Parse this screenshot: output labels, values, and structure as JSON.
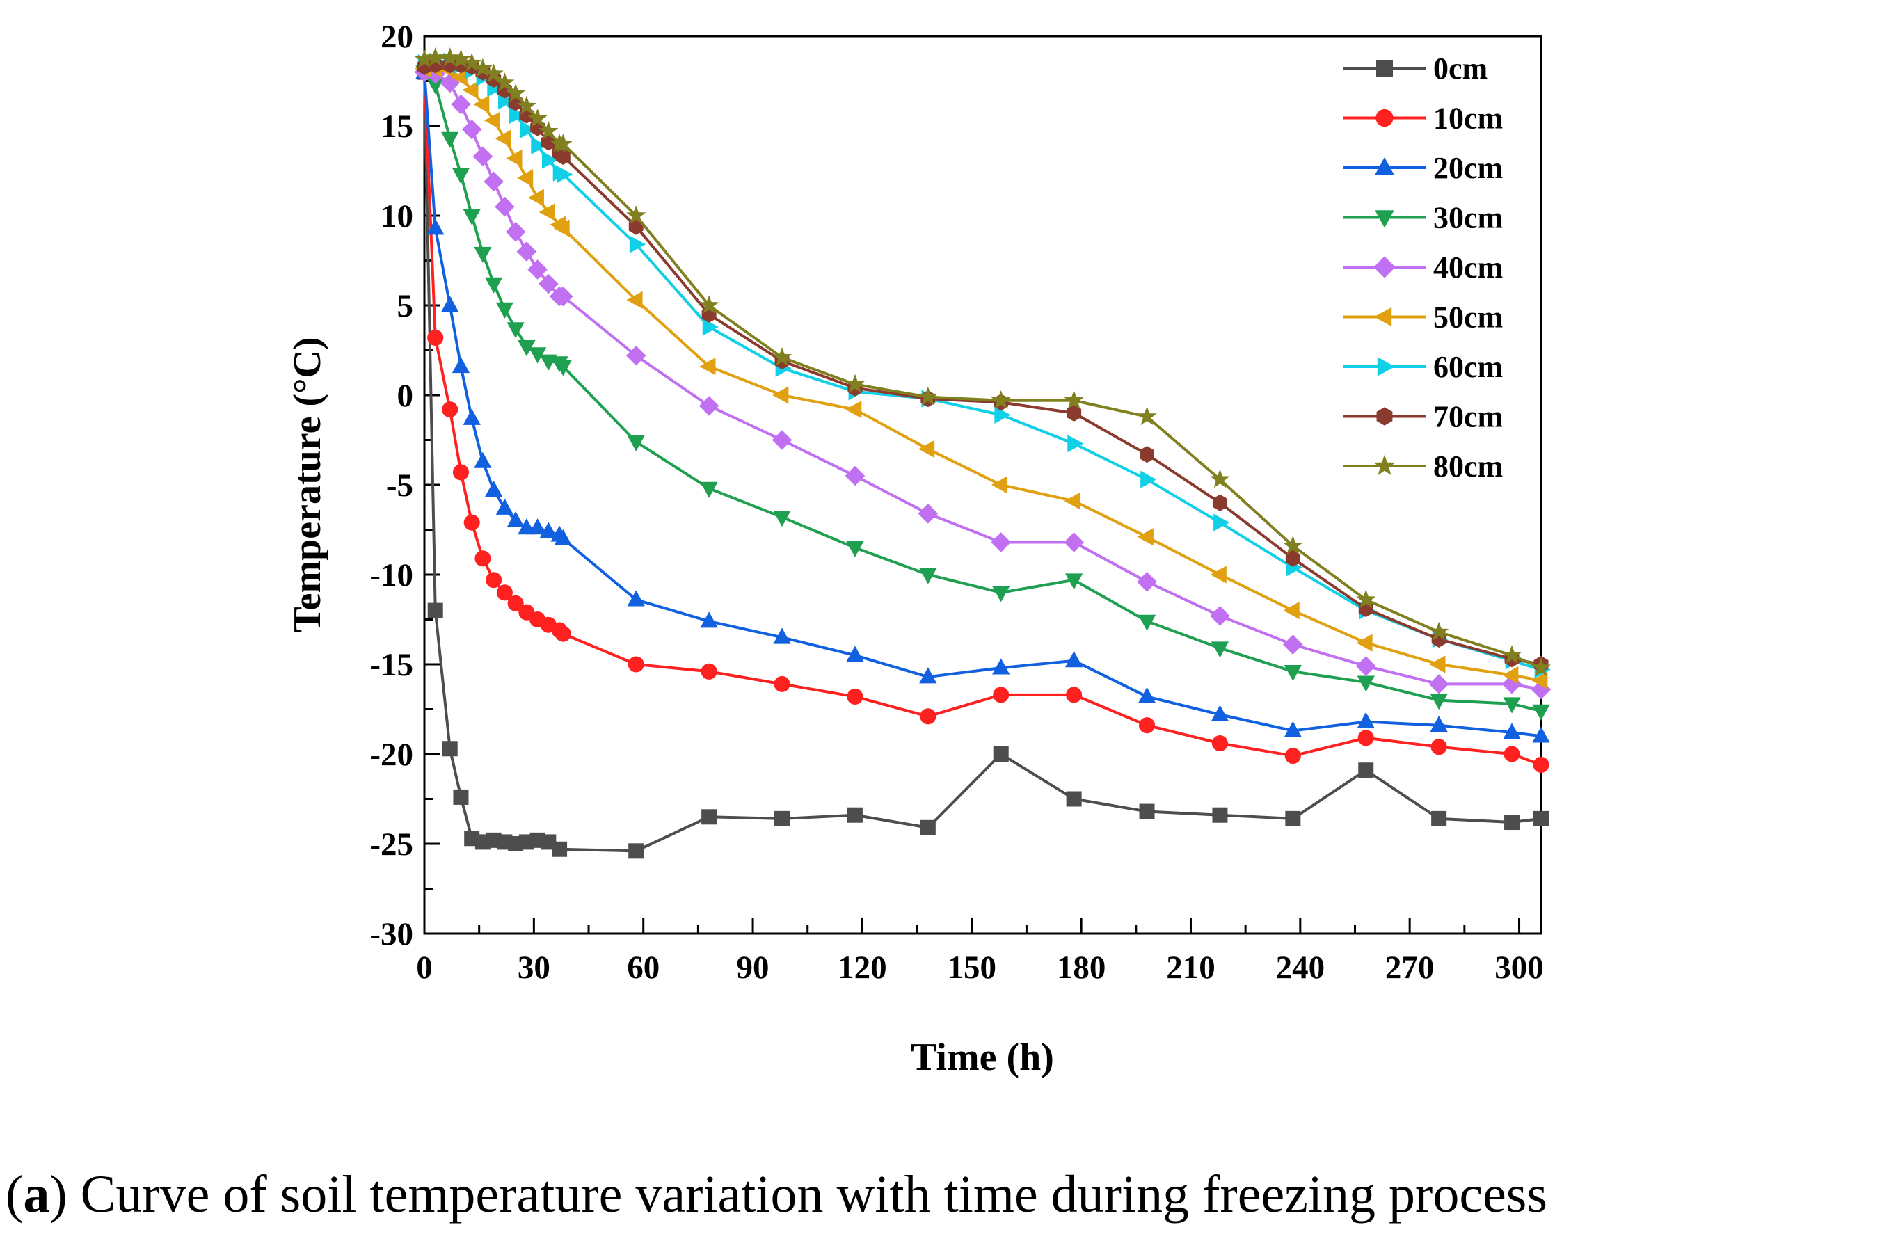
{
  "caption": {
    "label": "a",
    "text": "Curve of soil temperature variation with time during freezing process"
  },
  "chart_data": {
    "type": "line",
    "title": "",
    "xlabel": "Time (h)",
    "ylabel": "Temperature (°C)",
    "xlim": [
      0,
      306
    ],
    "ylim": [
      -30,
      20
    ],
    "xticks": [
      0,
      30,
      60,
      90,
      120,
      150,
      180,
      210,
      240,
      270,
      300
    ],
    "yticks": [
      -30,
      -25,
      -20,
      -15,
      -10,
      -5,
      0,
      5,
      10,
      15,
      20
    ],
    "grid": false,
    "legend_position": "top-right",
    "series": [
      {
        "name": "0cm",
        "color": "#4d4d4d",
        "marker": "square",
        "x": [
          0,
          3,
          7,
          10,
          13,
          16,
          19,
          22,
          25,
          28,
          31,
          34,
          37,
          58,
          78,
          98,
          118,
          138,
          158,
          178,
          198,
          218,
          238,
          258,
          278,
          298,
          306
        ],
        "y": [
          18,
          -12,
          -19.7,
          -22.4,
          -24.7,
          -24.9,
          -24.8,
          -24.9,
          -25,
          -24.9,
          -24.8,
          -24.9,
          -25.3,
          -25.4,
          -23.5,
          -23.6,
          -23.4,
          -24.1,
          -20,
          -22.5,
          -23.2,
          -23.4,
          -23.6,
          -20.9,
          -23.6,
          -23.8,
          -23.6
        ]
      },
      {
        "name": "10cm",
        "color": "#ff2020",
        "marker": "circle",
        "x": [
          0,
          3,
          7,
          10,
          13,
          16,
          19,
          22,
          25,
          28,
          31,
          34,
          37,
          38,
          58,
          78,
          98,
          118,
          138,
          158,
          178,
          198,
          218,
          238,
          258,
          278,
          298,
          306
        ],
        "y": [
          18,
          3.2,
          -0.8,
          -4.3,
          -7.1,
          -9.1,
          -10.3,
          -11,
          -11.6,
          -12.1,
          -12.5,
          -12.8,
          -13.1,
          -13.3,
          -15,
          -15.4,
          -16.1,
          -16.8,
          -17.9,
          -16.7,
          -16.7,
          -18.4,
          -19.4,
          -20.1,
          -19.1,
          -19.6,
          -20,
          -20.6
        ]
      },
      {
        "name": "20cm",
        "color": "#1060e0",
        "marker": "triangle-up",
        "x": [
          0,
          3,
          7,
          10,
          13,
          16,
          19,
          22,
          25,
          28,
          31,
          34,
          37,
          38,
          58,
          78,
          98,
          118,
          138,
          158,
          178,
          198,
          218,
          238,
          258,
          278,
          298,
          306
        ],
        "y": [
          18,
          9.3,
          5,
          1.6,
          -1.3,
          -3.7,
          -5.3,
          -6.3,
          -7,
          -7.4,
          -7.4,
          -7.6,
          -7.8,
          -8,
          -11.4,
          -12.6,
          -13.5,
          -14.5,
          -15.7,
          -15.2,
          -14.8,
          -16.8,
          -17.8,
          -18.7,
          -18.2,
          -18.4,
          -18.8,
          -19
        ]
      },
      {
        "name": "30cm",
        "color": "#1fa050",
        "marker": "triangle-down",
        "x": [
          0,
          3,
          7,
          10,
          13,
          16,
          19,
          22,
          25,
          28,
          31,
          34,
          37,
          38,
          58,
          78,
          98,
          118,
          138,
          158,
          178,
          198,
          218,
          238,
          258,
          278,
          298,
          306
        ],
        "y": [
          18,
          17.3,
          14.3,
          12.3,
          10,
          7.9,
          6.2,
          4.8,
          3.7,
          2.7,
          2.3,
          1.9,
          1.8,
          1.6,
          -2.6,
          -5.2,
          -6.8,
          -8.5,
          -10,
          -11,
          -10.3,
          -12.6,
          -14.1,
          -15.4,
          -16,
          -17,
          -17.2,
          -17.6
        ]
      },
      {
        "name": "40cm",
        "color": "#c070f0",
        "marker": "diamond",
        "x": [
          0,
          3,
          7,
          10,
          13,
          16,
          19,
          22,
          25,
          28,
          31,
          34,
          37,
          38,
          58,
          78,
          98,
          118,
          138,
          158,
          178,
          198,
          218,
          238,
          258,
          278,
          298,
          306
        ],
        "y": [
          18,
          17.9,
          17.4,
          16.2,
          14.8,
          13.3,
          11.9,
          10.5,
          9.1,
          8,
          7,
          6.2,
          5.5,
          5.5,
          2.2,
          -0.6,
          -2.5,
          -4.5,
          -6.6,
          -8.2,
          -8.2,
          -10.4,
          -12.3,
          -13.9,
          -15.1,
          -16.1,
          -16.1,
          -16.4
        ]
      },
      {
        "name": "50cm",
        "color": "#e0a010",
        "marker": "triangle-left",
        "x": [
          0,
          3,
          7,
          10,
          13,
          16,
          19,
          22,
          25,
          28,
          31,
          34,
          37,
          38,
          58,
          78,
          98,
          118,
          138,
          158,
          178,
          198,
          218,
          238,
          258,
          278,
          298,
          306
        ],
        "y": [
          18.2,
          18.2,
          18.1,
          17.7,
          17,
          16.2,
          15.3,
          14.3,
          13.2,
          12.1,
          11,
          10.2,
          9.5,
          9.3,
          5.3,
          1.6,
          0,
          -0.8,
          -3,
          -5,
          -5.9,
          -7.9,
          -10,
          -12,
          -13.8,
          -15,
          -15.6,
          -15.9
        ]
      },
      {
        "name": "60cm",
        "color": "#10d0e8",
        "marker": "triangle-right",
        "x": [
          0,
          3,
          7,
          10,
          13,
          16,
          19,
          22,
          25,
          28,
          31,
          34,
          37,
          38,
          58,
          78,
          98,
          118,
          138,
          158,
          178,
          198,
          218,
          238,
          258,
          278,
          298,
          306
        ],
        "y": [
          18.5,
          18.6,
          18.6,
          18.4,
          18.1,
          17.7,
          17.1,
          16.4,
          15.6,
          14.8,
          13.9,
          13.1,
          12.4,
          12.3,
          8.4,
          3.8,
          1.5,
          0.2,
          -0.2,
          -1.1,
          -2.7,
          -4.7,
          -7.1,
          -9.6,
          -12,
          -13.6,
          -14.8,
          -15.3
        ]
      },
      {
        "name": "70cm",
        "color": "#8b3a2e",
        "marker": "hexagon",
        "x": [
          0,
          3,
          7,
          10,
          13,
          16,
          19,
          22,
          25,
          28,
          31,
          34,
          37,
          38,
          58,
          78,
          98,
          118,
          138,
          158,
          178,
          198,
          218,
          238,
          258,
          278,
          298,
          306
        ],
        "y": [
          18.3,
          18.4,
          18.4,
          18.4,
          18.3,
          18,
          17.6,
          17,
          16.3,
          15.6,
          14.9,
          14.1,
          13.5,
          13.3,
          9.4,
          4.5,
          1.9,
          0.4,
          -0.2,
          -0.4,
          -1,
          -3.3,
          -6,
          -9.1,
          -11.9,
          -13.6,
          -14.7,
          -15
        ]
      },
      {
        "name": "80cm",
        "color": "#808020",
        "marker": "star",
        "x": [
          0,
          3,
          7,
          10,
          13,
          16,
          19,
          22,
          25,
          28,
          31,
          34,
          37,
          38,
          58,
          78,
          98,
          118,
          138,
          158,
          178,
          198,
          218,
          238,
          258,
          278,
          298,
          306
        ],
        "y": [
          18.7,
          18.8,
          18.8,
          18.7,
          18.5,
          18.2,
          17.9,
          17.4,
          16.8,
          16.1,
          15.4,
          14.7,
          14,
          14,
          10,
          5,
          2.1,
          0.6,
          -0.1,
          -0.3,
          -0.3,
          -1.2,
          -4.7,
          -8.4,
          -11.4,
          -13.2,
          -14.5,
          -15.2
        ]
      }
    ]
  }
}
